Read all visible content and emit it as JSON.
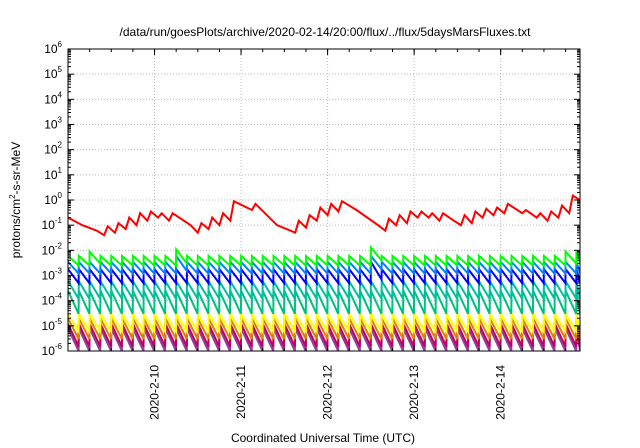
{
  "chart_data": {
    "type": "line",
    "title": "/data/run/goesPlots/archive/2020-02-14/20:00/flux/../flux/5daysMarsFluxes.txt",
    "xlabel": "Coordinated Universal Time (UTC)",
    "ylabel": "protons/cm²-s-sr-MeV",
    "ylabel_parts": {
      "base": "protons/cm",
      "sup": "2",
      "rest": "-s-sr-MeV"
    },
    "yscale": "log",
    "xlim": [
      "2020-02-09T00:00",
      "2020-02-14T22:00"
    ],
    "ylim": [
      1e-06,
      1000000
    ],
    "y_ticks": [
      {
        "base": "10",
        "exp": "-6",
        "value": 1e-06
      },
      {
        "base": "10",
        "exp": "-5",
        "value": 1e-05
      },
      {
        "base": "10",
        "exp": "-4",
        "value": 0.0001
      },
      {
        "base": "10",
        "exp": "-3",
        "value": 0.001
      },
      {
        "base": "10",
        "exp": "-2",
        "value": 0.01
      },
      {
        "base": "10",
        "exp": "-1",
        "value": 0.1
      },
      {
        "base": "10",
        "exp": "0",
        "value": 1
      },
      {
        "base": "10",
        "exp": "1",
        "value": 10
      },
      {
        "base": "10",
        "exp": "2",
        "value": 100
      },
      {
        "base": "10",
        "exp": "3",
        "value": 1000
      },
      {
        "base": "10",
        "exp": "4",
        "value": 10000
      },
      {
        "base": "10",
        "exp": "5",
        "value": 100000
      },
      {
        "base": "10",
        "exp": "6",
        "value": 1000000
      }
    ],
    "x_ticks": [
      {
        "label": "2020-2-10",
        "value": "2020-02-10T00:00"
      },
      {
        "label": "2020-2-11",
        "value": "2020-02-11T00:00"
      },
      {
        "label": "2020-2-12",
        "value": "2020-02-12T00:00"
      },
      {
        "label": "2020-2-13",
        "value": "2020-02-13T00:00"
      },
      {
        "label": "2020-2-14",
        "value": "2020-02-14T00:00"
      }
    ],
    "grid": true,
    "series": [
      {
        "color": "#ff0000",
        "points": [
          [
            "2020-02-09T00:00",
            0.2
          ],
          [
            "2020-02-09T04:00",
            0.1
          ],
          [
            "2020-02-09T08:00",
            0.06
          ],
          [
            "2020-02-09T10:00",
            0.04
          ],
          [
            "2020-02-09T11:00",
            0.09
          ],
          [
            "2020-02-09T13:00",
            0.05
          ],
          [
            "2020-02-09T14:00",
            0.12
          ],
          [
            "2020-02-09T16:00",
            0.07
          ],
          [
            "2020-02-09T17:00",
            0.2
          ],
          [
            "2020-02-09T19:00",
            0.1
          ],
          [
            "2020-02-09T20:00",
            0.3
          ],
          [
            "2020-02-09T22:00",
            0.15
          ],
          [
            "2020-02-09T23:00",
            0.35
          ],
          [
            "2020-02-10T01:00",
            0.2
          ],
          [
            "2020-02-10T02:00",
            0.3
          ],
          [
            "2020-02-10T04:00",
            0.15
          ],
          [
            "2020-02-10T05:00",
            0.3
          ],
          [
            "2020-02-10T10:00",
            0.1
          ],
          [
            "2020-02-10T12:00",
            0.05
          ],
          [
            "2020-02-10T13:00",
            0.12
          ],
          [
            "2020-02-10T15:00",
            0.07
          ],
          [
            "2020-02-10T16:00",
            0.2
          ],
          [
            "2020-02-10T18:00",
            0.1
          ],
          [
            "2020-02-10T19:00",
            0.3
          ],
          [
            "2020-02-10T21:00",
            0.15
          ],
          [
            "2020-02-10T22:00",
            0.9
          ],
          [
            "2020-02-11T03:00",
            0.4
          ],
          [
            "2020-02-11T04:00",
            0.7
          ],
          [
            "2020-02-11T10:00",
            0.1
          ],
          [
            "2020-02-11T15:00",
            0.05
          ],
          [
            "2020-02-11T16:00",
            0.15
          ],
          [
            "2020-02-11T18:00",
            0.08
          ],
          [
            "2020-02-11T19:00",
            0.25
          ],
          [
            "2020-02-11T21:00",
            0.15
          ],
          [
            "2020-02-11T22:00",
            0.5
          ],
          [
            "2020-02-12T00:00",
            0.25
          ],
          [
            "2020-02-12T01:00",
            0.7
          ],
          [
            "2020-02-12T03:00",
            0.35
          ],
          [
            "2020-02-12T04:00",
            0.9
          ],
          [
            "2020-02-12T08:00",
            0.4
          ],
          [
            "2020-02-12T14:00",
            0.1
          ],
          [
            "2020-02-12T16:00",
            0.06
          ],
          [
            "2020-02-12T17:00",
            0.18
          ],
          [
            "2020-02-12T19:00",
            0.1
          ],
          [
            "2020-02-12T20:00",
            0.25
          ],
          [
            "2020-02-12T22:00",
            0.12
          ],
          [
            "2020-02-12T23:00",
            0.35
          ],
          [
            "2020-02-13T01:00",
            0.2
          ],
          [
            "2020-02-13T02:00",
            0.35
          ],
          [
            "2020-02-13T04:00",
            0.2
          ],
          [
            "2020-02-13T05:00",
            0.3
          ],
          [
            "2020-02-13T07:00",
            0.15
          ],
          [
            "2020-02-13T08:00",
            0.3
          ],
          [
            "2020-02-13T11:00",
            0.15
          ],
          [
            "2020-02-13T13:00",
            0.1
          ],
          [
            "2020-02-13T14:00",
            0.25
          ],
          [
            "2020-02-13T16:00",
            0.12
          ],
          [
            "2020-02-13T17:00",
            0.35
          ],
          [
            "2020-02-13T19:00",
            0.2
          ],
          [
            "2020-02-13T20:00",
            0.45
          ],
          [
            "2020-02-13T22:00",
            0.25
          ],
          [
            "2020-02-13T23:00",
            0.5
          ],
          [
            "2020-02-14T01:00",
            0.3
          ],
          [
            "2020-02-14T02:00",
            0.7
          ],
          [
            "2020-02-14T06:00",
            0.3
          ],
          [
            "2020-02-14T07:00",
            0.4
          ],
          [
            "2020-02-14T10:00",
            0.2
          ],
          [
            "2020-02-14T11:00",
            0.3
          ],
          [
            "2020-02-14T13:00",
            0.15
          ],
          [
            "2020-02-14T14:00",
            0.35
          ],
          [
            "2020-02-14T16:00",
            0.2
          ],
          [
            "2020-02-14T17:00",
            0.6
          ],
          [
            "2020-02-14T19:00",
            0.3
          ],
          [
            "2020-02-14T20:00",
            1.5
          ],
          [
            "2020-02-14T22:00",
            1.0
          ]
        ]
      },
      {
        "color": "#00ff00",
        "sawtooth": {
          "start": "2020-02-09T00:00",
          "end": "2020-02-14T22:00",
          "period_hours": 3,
          "high": 0.006,
          "low": 0.0025
        },
        "spikes": [
          {
            "t": "2020-02-09T06:00",
            "high": 0.009,
            "low": 0.003
          },
          {
            "t": "2020-02-10T06:00",
            "high": 0.011,
            "low": 0.003
          },
          {
            "t": "2020-02-12T12:00",
            "high": 0.013,
            "low": 0.004
          },
          {
            "t": "2020-02-14T19:00",
            "high": 0.009,
            "low": 0.003
          }
        ]
      },
      {
        "color": "#0080ff",
        "sawtooth": {
          "start": "2020-02-09T00:00",
          "end": "2020-02-14T22:00",
          "period_hours": 3,
          "high": 0.0035,
          "low": 0.0012
        },
        "spikes": [
          {
            "t": "2020-02-10T06:00",
            "high": 0.006,
            "low": 0.0015
          },
          {
            "t": "2020-02-12T12:00",
            "high": 0.006,
            "low": 0.0018
          }
        ]
      },
      {
        "color": "#0000ff",
        "sawtooth": {
          "start": "2020-02-09T00:00",
          "end": "2020-02-14T22:00",
          "period_hours": 3,
          "high": 0.0018,
          "low": 0.0005
        },
        "spikes": [
          {
            "t": "2020-02-12T12:00",
            "high": 0.0035,
            "low": 0.0007
          }
        ]
      },
      {
        "color": "#00c0a0",
        "sawtooth": {
          "start": "2020-02-09T00:00",
          "end": "2020-02-14T22:00",
          "period_hours": 3,
          "high": 0.0006,
          "low": 0.00012
        },
        "spikes": []
      },
      {
        "color": "#00c080",
        "sawtooth": {
          "start": "2020-02-09T00:00",
          "end": "2020-02-14T22:00",
          "period_hours": 3,
          "high": 0.00025,
          "low": 3e-05
        },
        "spikes": []
      },
      {
        "color": "#ffff00",
        "sawtooth": {
          "start": "2020-02-09T00:00",
          "end": "2020-02-14T22:00",
          "period_hours": 3,
          "high": 3e-05,
          "low": 6e-06
        },
        "spikes": []
      },
      {
        "color": "#e08000",
        "sawtooth": {
          "start": "2020-02-09T00:00",
          "end": "2020-02-14T22:00",
          "period_hours": 3,
          "high": 2e-05,
          "low": 3e-06
        },
        "spikes": []
      },
      {
        "color": "#c00060",
        "sawtooth": {
          "start": "2020-02-09T00:00",
          "end": "2020-02-14T22:00",
          "period_hours": 3,
          "high": 1.2e-05,
          "low": 1.5e-06
        },
        "spikes": []
      },
      {
        "color": "#9040a0",
        "sawtooth": {
          "start": "2020-02-09T00:00",
          "end": "2020-02-14T22:00",
          "period_hours": 3,
          "high": 8e-06,
          "low": 1e-06
        },
        "spikes": []
      }
    ]
  }
}
